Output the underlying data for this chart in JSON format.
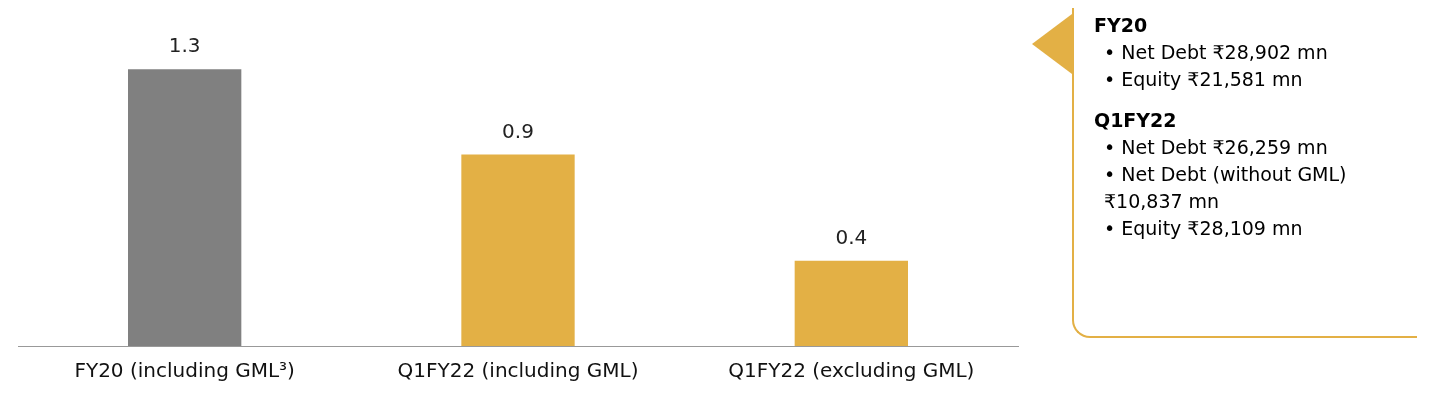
{
  "chart_data": {
    "type": "bar",
    "categories": [
      "FY20 (including GML³)",
      "Q1FY22 (including GML)",
      "Q1FY22 (excluding GML)"
    ],
    "values": [
      1.3,
      0.9,
      0.4
    ],
    "colors": [
      "#808080",
      "#e3b045",
      "#e3b045"
    ],
    "data_labels": true,
    "grid": false,
    "legend": false,
    "annotations": [
      "FY20",
      "•  Net Debt ₹28,902 mn",
      "•  Equity ₹21,581 mn",
      "Q1FY22",
      "•  Net Debt ₹26,259 mn",
      "•  Net Debt (without GML) ₹10,837 mn",
      "•  Equity ₹28,109 mn"
    ]
  }
}
